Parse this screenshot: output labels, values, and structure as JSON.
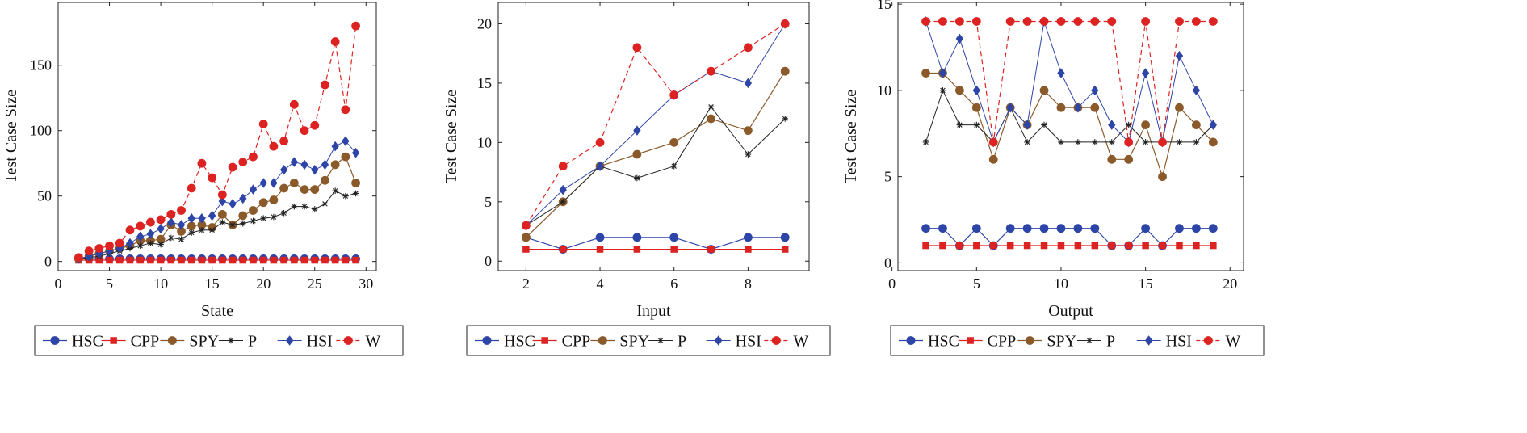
{
  "series_styles": [
    {
      "name": "HSC",
      "color": "#2e45a8",
      "marker": "circle",
      "dash": false,
      "line_width": 1.2
    },
    {
      "name": "CPP",
      "color": "#dd2222",
      "marker": "square",
      "dash": false,
      "line_width": 1.2
    },
    {
      "name": "SPY",
      "color": "#8b5a2b",
      "marker": "circle",
      "dash": false,
      "line_width": 1.2
    },
    {
      "name": "P",
      "color": "#222222",
      "marker": "star",
      "dash": false,
      "line_width": 1.0
    },
    {
      "name": "HSI",
      "color": "#2e45a8",
      "marker": "diamond",
      "dash": false,
      "line_width": 1.0
    },
    {
      "name": "W",
      "color": "#dd2222",
      "marker": "circle",
      "dash": true,
      "line_width": 1.2
    }
  ],
  "chart_data": [
    {
      "type": "line",
      "xlabel": "State",
      "ylabel": "Test Case Size",
      "xlim": [
        0,
        31
      ],
      "ylim": [
        -7,
        198
      ],
      "xticks": [
        0,
        5,
        10,
        15,
        20,
        25,
        30
      ],
      "yticks": [
        0,
        50,
        100,
        150
      ],
      "grid": false,
      "legend_position": "bottom",
      "x": [
        2,
        3,
        4,
        5,
        6,
        7,
        8,
        9,
        10,
        11,
        12,
        13,
        14,
        15,
        16,
        17,
        18,
        19,
        20,
        21,
        22,
        23,
        24,
        25,
        26,
        27,
        28,
        29
      ],
      "series": [
        {
          "name": "HSC",
          "values": [
            2,
            2,
            2,
            2,
            2,
            2,
            2,
            2,
            2,
            2,
            2,
            2,
            2,
            2,
            2,
            2,
            2,
            2,
            2,
            2,
            2,
            2,
            2,
            2,
            2,
            2,
            2,
            2
          ]
        },
        {
          "name": "CPP",
          "values": [
            1,
            1,
            1,
            1,
            1,
            1,
            1,
            1,
            1,
            1,
            1,
            1,
            1,
            1,
            1,
            1,
            1,
            1,
            1,
            1,
            1,
            1,
            1,
            1,
            1,
            1,
            1,
            1
          ]
        },
        {
          "name": "SPY",
          "values": [
            2,
            4,
            6,
            8,
            10,
            12,
            16,
            16,
            17,
            28,
            23,
            27,
            28,
            26,
            36,
            28,
            35,
            39,
            45,
            47,
            56,
            60,
            55,
            55,
            62,
            74,
            80,
            60
          ]
        },
        {
          "name": "P",
          "values": [
            2,
            3,
            4,
            6,
            8,
            10,
            12,
            14,
            13,
            18,
            17,
            22,
            24,
            24,
            30,
            28,
            29,
            31,
            33,
            34,
            37,
            42,
            42,
            40,
            44,
            54,
            50,
            52
          ]
        },
        {
          "name": "HSI",
          "values": [
            2,
            4,
            6,
            8,
            10,
            14,
            19,
            21,
            25,
            30,
            28,
            33,
            33,
            35,
            46,
            44,
            48,
            55,
            60,
            60,
            70,
            76,
            74,
            70,
            74,
            88,
            92,
            83
          ]
        },
        {
          "name": "W",
          "values": [
            3,
            8,
            10,
            12,
            14,
            24,
            27,
            30,
            32,
            36,
            39,
            56,
            75,
            64,
            51,
            72,
            76,
            80,
            105,
            88,
            92,
            120,
            100,
            104,
            135,
            168,
            116,
            180
          ]
        }
      ]
    },
    {
      "type": "line",
      "xlabel": "Input",
      "ylabel": "Test Case Size",
      "xlim": [
        1.25,
        9.65
      ],
      "ylim": [
        -0.8,
        21.8
      ],
      "xticks": [
        2,
        4,
        6,
        8
      ],
      "yticks": [
        0,
        5,
        10,
        15,
        20
      ],
      "grid": false,
      "legend_position": "bottom",
      "x": [
        2,
        3,
        4,
        5,
        6,
        7,
        8,
        9
      ],
      "series": [
        {
          "name": "HSC",
          "values": [
            2,
            1,
            2,
            2,
            2,
            1,
            2,
            2
          ]
        },
        {
          "name": "CPP",
          "values": [
            1,
            1,
            1,
            1,
            1,
            1,
            1,
            1
          ]
        },
        {
          "name": "SPY",
          "values": [
            2,
            5,
            8,
            9,
            10,
            12,
            11,
            16
          ]
        },
        {
          "name": "P",
          "values": [
            3,
            5,
            8,
            7,
            8,
            13,
            9,
            12
          ]
        },
        {
          "name": "HSI",
          "values": [
            3,
            6,
            8,
            11,
            14,
            16,
            15,
            20
          ]
        },
        {
          "name": "W",
          "values": [
            3,
            8,
            10,
            18,
            14,
            16,
            18,
            20
          ]
        }
      ]
    },
    {
      "type": "line",
      "xlabel": "Output",
      "ylabel": "Test Case Size",
      "xlim": [
        0.35,
        20.8
      ],
      "ylim": [
        -0.45,
        15.1
      ],
      "xticks": [
        0,
        5,
        10,
        15,
        20
      ],
      "yticks": [
        0,
        5,
        10,
        15
      ],
      "grid": false,
      "legend_position": "bottom",
      "x": [
        2,
        3,
        4,
        5,
        6,
        7,
        8,
        9,
        10,
        11,
        12,
        13,
        14,
        15,
        16,
        17,
        18,
        19
      ],
      "series": [
        {
          "name": "HSC",
          "values": [
            2,
            2,
            1,
            2,
            1,
            2,
            2,
            2,
            2,
            2,
            2,
            1,
            1,
            2,
            1,
            2,
            2,
            2
          ]
        },
        {
          "name": "CPP",
          "values": [
            1,
            1,
            1,
            1,
            1,
            1,
            1,
            1,
            1,
            1,
            1,
            1,
            1,
            1,
            1,
            1,
            1,
            1
          ]
        },
        {
          "name": "SPY",
          "values": [
            11,
            11,
            10,
            9,
            6,
            9,
            8,
            10,
            9,
            9,
            9,
            6,
            6,
            8,
            5,
            9,
            8,
            7
          ]
        },
        {
          "name": "P",
          "values": [
            7,
            10,
            8,
            8,
            7,
            9,
            7,
            8,
            7,
            7,
            7,
            7,
            8,
            7,
            7,
            7,
            7,
            8
          ]
        },
        {
          "name": "HSI",
          "values": [
            14,
            11,
            13,
            10,
            7,
            9,
            8,
            14,
            11,
            9,
            10,
            8,
            7,
            11,
            7,
            12,
            10,
            8
          ]
        },
        {
          "name": "W",
          "values": [
            14,
            14,
            14,
            14,
            7,
            14,
            14,
            14,
            14,
            14,
            14,
            14,
            7,
            14,
            7,
            14,
            14,
            14
          ]
        }
      ]
    }
  ]
}
